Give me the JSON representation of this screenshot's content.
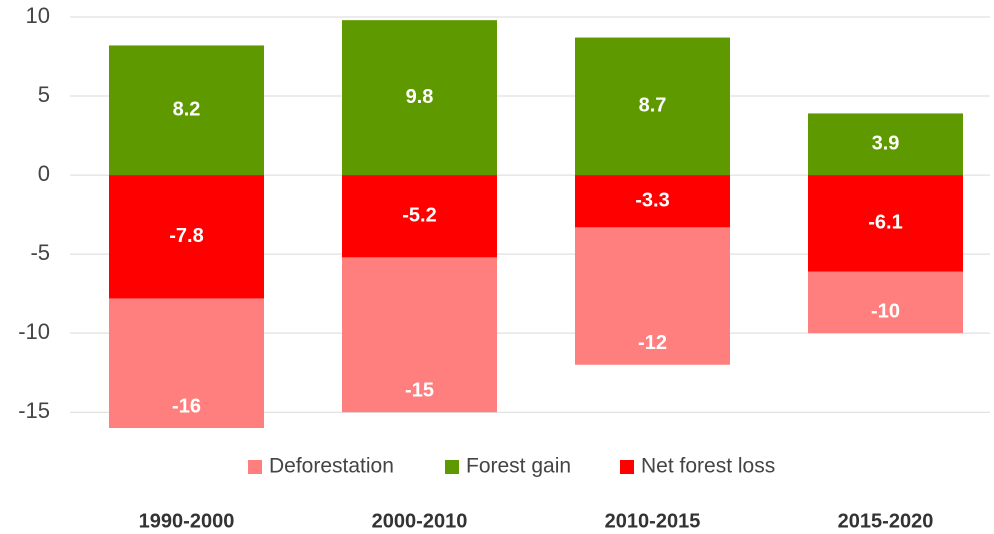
{
  "chart_data": {
    "type": "bar",
    "categories": [
      "1990-2000",
      "2000-2010",
      "2010-2015",
      "2015-2020"
    ],
    "series": [
      {
        "name": "Deforestation",
        "color": "#ff7f7f",
        "values": [
          -16,
          -15,
          -12,
          -10
        ]
      },
      {
        "name": "Forest gain",
        "color": "#5f9900",
        "values": [
          8.2,
          9.8,
          8.7,
          3.9
        ]
      },
      {
        "name": "Net forest loss",
        "color": "#ff0000",
        "values": [
          -7.8,
          -5.2,
          -3.3,
          -6.1
        ]
      }
    ],
    "ylim": [
      -16,
      10
    ],
    "yticks": [
      -15,
      -10,
      -5,
      0,
      5,
      10
    ],
    "grid": true,
    "legend": "bottom"
  }
}
